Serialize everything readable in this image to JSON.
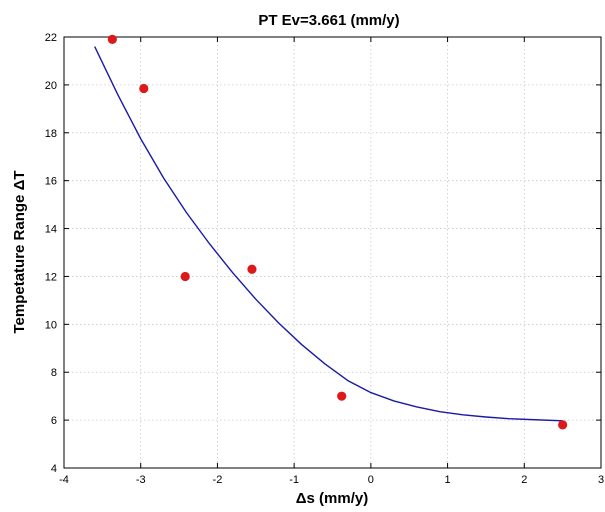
{
  "chart_data": {
    "type": "scatter",
    "title": "PT Ev=3.661 (mm/y)",
    "xlabel": "Δs (mm/y)",
    "ylabel": "Tempetature Range ΔT",
    "xlim": [
      -4,
      3
    ],
    "ylim": [
      4,
      22
    ],
    "xticks": [
      -4,
      -3,
      -2,
      -1,
      0,
      1,
      2,
      3
    ],
    "yticks": [
      4,
      6,
      8,
      10,
      12,
      14,
      16,
      18,
      20,
      22
    ],
    "grid": true,
    "points": [
      {
        "x": -3.37,
        "y": 21.9
      },
      {
        "x": -2.96,
        "y": 19.85
      },
      {
        "x": -2.42,
        "y": 12.0
      },
      {
        "x": -1.55,
        "y": 12.3
      },
      {
        "x": -0.38,
        "y": 7.0
      },
      {
        "x": 2.5,
        "y": 5.8
      }
    ],
    "fit_curve": {
      "x": [
        -3.6,
        -3.3,
        -3.0,
        -2.7,
        -2.4,
        -2.1,
        -1.8,
        -1.5,
        -1.2,
        -0.9,
        -0.6,
        -0.3,
        0.0,
        0.3,
        0.6,
        0.9,
        1.2,
        1.5,
        1.8,
        2.1,
        2.5
      ],
      "y": [
        21.6,
        19.6,
        17.75,
        16.1,
        14.65,
        13.35,
        12.15,
        11.05,
        10.05,
        9.15,
        8.35,
        7.65,
        7.15,
        6.8,
        6.55,
        6.35,
        6.22,
        6.13,
        6.06,
        6.02,
        5.97
      ]
    },
    "colors": {
      "points": "#dd1a1a",
      "curve": "#1a1aa8"
    }
  }
}
